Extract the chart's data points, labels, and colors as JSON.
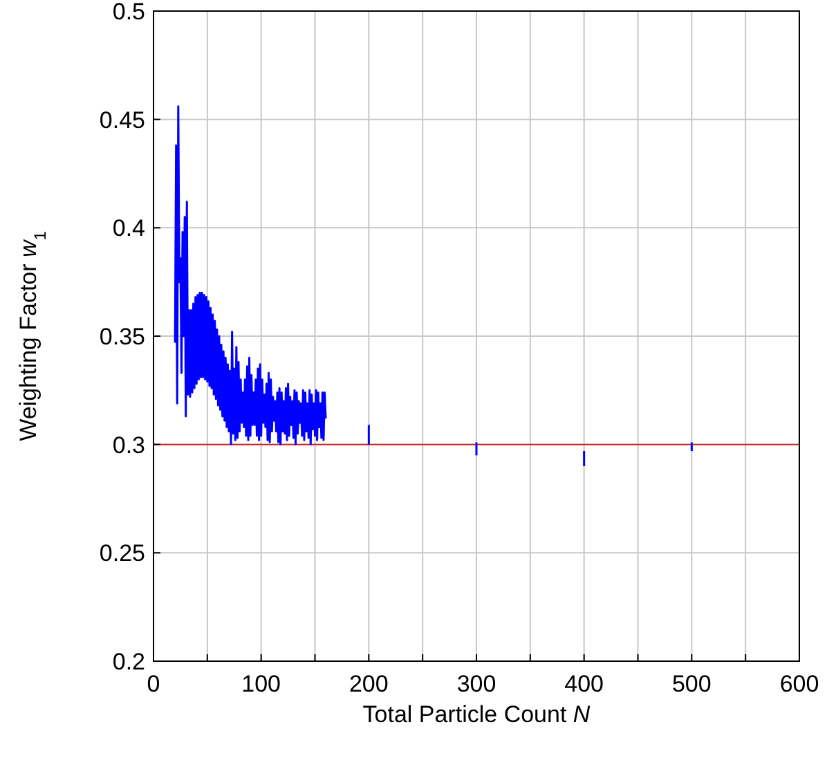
{
  "chart_data": {
    "type": "line",
    "xlabel": "Total Particle Count N",
    "ylabel": "Weighting Factor w$_{1}$",
    "xlim": [
      0,
      600
    ],
    "ylim": [
      0.2,
      0.5
    ],
    "xticks": [
      0,
      {
        "value": 50,
        "label": null
      },
      100,
      {
        "value": 150,
        "label": null
      },
      200,
      {
        "value": 250,
        "label": null
      },
      300,
      {
        "value": 350,
        "label": null
      },
      400,
      {
        "value": 450,
        "label": null
      },
      500,
      {
        "value": 550,
        "label": null
      },
      600
    ],
    "yticks": [
      0.2,
      0.25,
      0.3,
      0.35,
      0.4,
      0.45,
      0.5
    ],
    "grid": true,
    "marker": "none",
    "line_style": "solid",
    "ref_lines": [
      {
        "axis": "y",
        "value": 0.3,
        "color": "#cc2020"
      }
    ],
    "series": [
      {
        "color": "#0000ff",
        "x": [
          20,
          21,
          22,
          23,
          24,
          25,
          26,
          27,
          28,
          29,
          30,
          31,
          32,
          33,
          34,
          35,
          36,
          37,
          38,
          39,
          40,
          41,
          42,
          43,
          44,
          45,
          46,
          47,
          48,
          49,
          50,
          51,
          52,
          53,
          54,
          55,
          56,
          57,
          58,
          59,
          60,
          61,
          62,
          63,
          64,
          65,
          66,
          67,
          68,
          69,
          70,
          71,
          72,
          73,
          74,
          75,
          76,
          77,
          78,
          79,
          80,
          81,
          82,
          83,
          84,
          85,
          86,
          87,
          88,
          89,
          90,
          91,
          92,
          93,
          94,
          95,
          96,
          97,
          98,
          99,
          100,
          101,
          102,
          103,
          104,
          105,
          106,
          107,
          108,
          109,
          110,
          111,
          112,
          113,
          114,
          115,
          116,
          117,
          118,
          119,
          120,
          121,
          122,
          123,
          124,
          125,
          126,
          127,
          128,
          129,
          130,
          131,
          132,
          133,
          134,
          135,
          136,
          137,
          138,
          139,
          140,
          141,
          142,
          143,
          144,
          145,
          146,
          147,
          148,
          149,
          150,
          151,
          152,
          153,
          154,
          155,
          156,
          157,
          158,
          159,
          160
        ],
        "values": [
          0.347,
          0.438,
          0.319,
          0.456,
          0.375,
          0.386,
          0.333,
          0.398,
          0.35,
          0.405,
          0.313,
          0.412,
          0.323,
          0.362,
          0.322,
          0.362,
          0.324,
          0.365,
          0.326,
          0.368,
          0.328,
          0.369,
          0.33,
          0.37,
          0.331,
          0.37,
          0.331,
          0.369,
          0.33,
          0.368,
          0.329,
          0.366,
          0.327,
          0.363,
          0.326,
          0.36,
          0.323,
          0.357,
          0.321,
          0.353,
          0.318,
          0.35,
          0.316,
          0.346,
          0.313,
          0.343,
          0.311,
          0.34,
          0.308,
          0.337,
          0.306,
          0.334,
          0.3,
          0.352,
          0.305,
          0.335,
          0.302,
          0.345,
          0.303,
          0.338,
          0.306,
          0.33,
          0.31,
          0.324,
          0.308,
          0.33,
          0.304,
          0.336,
          0.302,
          0.34,
          0.304,
          0.332,
          0.309,
          0.324,
          0.309,
          0.33,
          0.304,
          0.335,
          0.302,
          0.337,
          0.304,
          0.33,
          0.31,
          0.323,
          0.308,
          0.328,
          0.302,
          0.333,
          0.301,
          0.33,
          0.306,
          0.322,
          0.311,
          0.32,
          0.306,
          0.324,
          0.301,
          0.326,
          0.3,
          0.324,
          0.306,
          0.32,
          0.305,
          0.326,
          0.302,
          0.328,
          0.304,
          0.322,
          0.309,
          0.32,
          0.303,
          0.325,
          0.3,
          0.324,
          0.305,
          0.32,
          0.31,
          0.319,
          0.304,
          0.325,
          0.302,
          0.324,
          0.306,
          0.319,
          0.303,
          0.325,
          0.3,
          0.323,
          0.307,
          0.319,
          0.304,
          0.325,
          0.302,
          0.324,
          0.308,
          0.319,
          0.303,
          0.324,
          0.302,
          0.324,
          0.312
        ]
      },
      {
        "color": "#0000ff",
        "x": [
          200,
          200
        ],
        "values": [
          0.3,
          0.309
        ]
      },
      {
        "color": "#0000ff",
        "x": [
          300,
          300
        ],
        "values": [
          0.301,
          0.295
        ]
      },
      {
        "color": "#0000ff",
        "x": [
          400,
          400
        ],
        "values": [
          0.297,
          0.29
        ]
      },
      {
        "color": "#0000ff",
        "x": [
          500,
          500
        ],
        "values": [
          0.301,
          0.297
        ]
      }
    ]
  }
}
